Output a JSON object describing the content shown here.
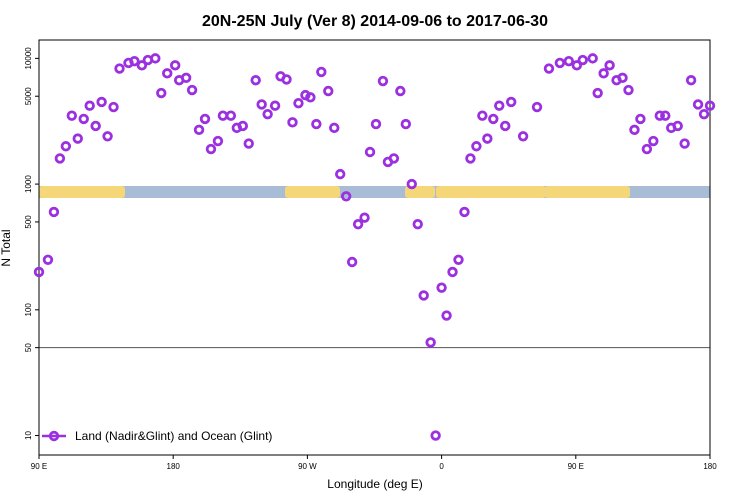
{
  "chart_data": {
    "type": "scatter",
    "title": "20N-25N July (Ver 8)   2014-09-06 to 2017-06-30",
    "xlabel": "Longitude (deg E)",
    "ylabel": "N Total",
    "xlim": [
      -90,
      180
    ],
    "ylim": [
      7,
      14000
    ],
    "yscale": "log",
    "x_ticks": [
      {
        "v": -90,
        "label": "90 E"
      },
      {
        "v": -36,
        "label": "180"
      },
      {
        "v": 18,
        "label": "90 W"
      },
      {
        "v": 72,
        "label": "0"
      },
      {
        "v": 126,
        "label": "90 E"
      },
      {
        "v": 180,
        "label": "180"
      }
    ],
    "y_ticks": [
      {
        "v": 10,
        "label": "10"
      },
      {
        "v": 50,
        "label": "50"
      },
      {
        "v": 100,
        "label": "100"
      },
      {
        "v": 500,
        "label": "500"
      },
      {
        "v": 1000,
        "label": "1000"
      },
      {
        "v": 5000,
        "label": "5000"
      },
      {
        "v": 10000,
        "label": "10000"
      }
    ],
    "reference_line": 50,
    "colors": {
      "marker": "#9b30e0",
      "ocean": "#a9bcd6",
      "land": "#f5d77a",
      "refline": "#555555"
    },
    "legend": {
      "placement": "bottom-left",
      "label": "Land (Nadir&Glint) and Ocean (Glint)"
    },
    "series": [
      {
        "name": "Land (Nadir&Glint) and Ocean (Glint)",
        "x": [
          -90,
          -86.4,
          -84,
          -81.6,
          -79.2,
          -76.8,
          -74.4,
          -72,
          -69.6,
          -67.2,
          -64.8,
          -62.4,
          -60,
          -57.6,
          -54,
          -51.6,
          -48.6,
          -46.2,
          -43.2,
          -40.8,
          -38.4,
          -35.2,
          -33.6,
          -30.8,
          -28.4,
          -25.6,
          -23.2,
          -20.8,
          -18,
          -16,
          -12.8,
          -10.4,
          -8,
          -5.6,
          -2.8,
          -0.4,
          2,
          5,
          7.2,
          9.6,
          12,
          14.4,
          17.2,
          19.2,
          21.6,
          23.6,
          26.4,
          28.8,
          31.2,
          33.6,
          36,
          38.4,
          41,
          43.2,
          45.6,
          48.4,
          50.4,
          52.8,
          55.4,
          57.6,
          60,
          62.4,
          64.8,
          67.6,
          69.6,
          72,
          74,
          76.4,
          78.8,
          81.2,
          83.6,
          86,
          88.4,
          90.4,
          92.8,
          95.2,
          97.6,
          100,
          104.8,
          110.4,
          115.2,
          119.6,
          123.2,
          126.4,
          128.8,
          132.8,
          134.8,
          137.2,
          139.6,
          142.4,
          144.8,
          147.2,
          149.6,
          152,
          154.6,
          157.2,
          159.8,
          162,
          164.4,
          167,
          169.8,
          172.4,
          175.2,
          177.6,
          180
        ],
        "y": [
          200,
          250,
          600,
          1600,
          2000,
          3500,
          2300,
          3300,
          4200,
          2900,
          4500,
          2400,
          4100,
          8300,
          9200,
          9500,
          8800,
          9700,
          10000,
          5300,
          7600,
          8800,
          6700,
          7000,
          5600,
          2700,
          3300,
          1900,
          2200,
          3500,
          3500,
          2800,
          2900,
          2100,
          6700,
          4300,
          3600,
          4200,
          7200,
          6800,
          3100,
          4400,
          5100,
          4900,
          3000,
          7800,
          5500,
          2800,
          1200,
          800,
          240,
          480,
          540,
          1800,
          3000,
          6600,
          1500,
          1600,
          5500,
          3000,
          1000,
          480,
          130,
          55,
          10,
          150,
          90,
          200,
          250,
          600,
          1600,
          2000,
          3500,
          2300,
          3300,
          4200,
          2900,
          4500,
          2400,
          4100,
          8300,
          9200,
          9500,
          8800,
          9700,
          10000,
          5300,
          7600,
          8800,
          6700,
          7000,
          5600,
          2700,
          3300,
          1900,
          2200,
          3500,
          3500,
          2800,
          2900,
          2100,
          6700,
          4300,
          3600,
          4200
        ]
      }
    ]
  }
}
